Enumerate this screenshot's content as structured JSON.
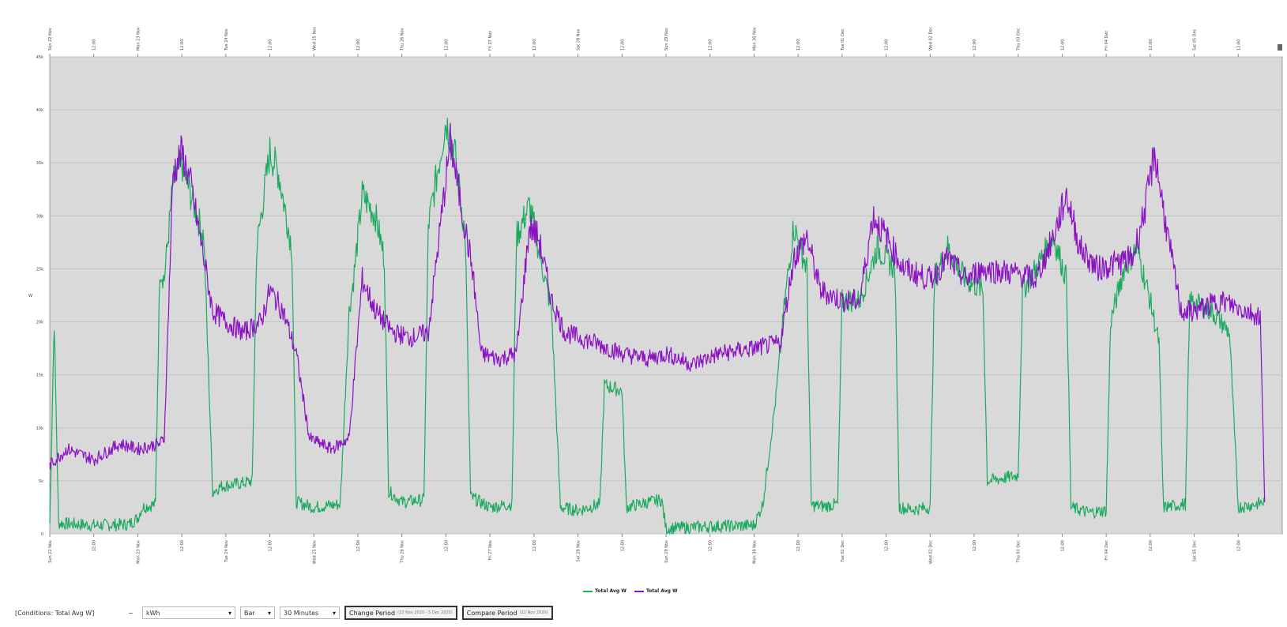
{
  "chart_data": {
    "type": "line",
    "title": "",
    "xlabel": "",
    "ylabel": "W",
    "ylim": [
      0,
      45000
    ],
    "y_ticks": [
      "0",
      "5k",
      "10k",
      "15k",
      "20k",
      "25k",
      "30k",
      "35k",
      "40k",
      "45k"
    ],
    "grid": true,
    "legend_placement": "bottom-center",
    "x_ticks_bottom": [
      "Sun 22 Nov",
      "12:00",
      "Mon 23 Nov",
      "12:00",
      "Tue 24 Nov",
      "12:00",
      "Wed 25 Nov",
      "12:00",
      "Thu 26 Nov",
      "12:00",
      "Fri 27 Nov",
      "12:00",
      "Sat 28 Nov",
      "12:00",
      "Sun 29 Nov",
      "12:00",
      "Mon 30 Nov",
      "12:00",
      "Tue 01 Dec",
      "12:00",
      "Wed 02 Dec",
      "12:00",
      "Thu 03 Dec",
      "12:00",
      "Fri 04 Dec",
      "12:00",
      "Sat 05 Dec",
      "12:00"
    ],
    "x_ticks_top": [
      "Sun 22 Nov",
      "12:00",
      "Mon 23 Nov",
      "12:00",
      "Tue 24 Nov",
      "12:00",
      "Wed 25 Nov",
      "12:00",
      "Thu 26 Nov",
      "12:00",
      "Fri 27 Nov",
      "12:00",
      "Sat 28 Nov",
      "12:00",
      "Sun 29 Nov",
      "12:00",
      "Mon 30 Nov",
      "12:00",
      "Tue 01 Dec",
      "12:00",
      "Wed 02 Dec",
      "12:00",
      "Thu 03 Dec",
      "12:00",
      "Fri 04 Dec",
      "12:00",
      "Sat 05 Dec",
      "12:00"
    ],
    "x_range_days": [
      0,
      14
    ],
    "series": [
      {
        "name": "Total Avg W",
        "color": "#1aaa5e",
        "points": [
          [
            0.0,
            1000
          ],
          [
            0.05,
            20000
          ],
          [
            0.1,
            1000
          ],
          [
            0.5,
            800
          ],
          [
            0.9,
            900
          ],
          [
            1.0,
            1500
          ],
          [
            1.05,
            2500
          ],
          [
            1.2,
            2800
          ],
          [
            1.25,
            25000
          ],
          [
            1.3,
            24000
          ],
          [
            1.4,
            33000
          ],
          [
            1.5,
            35000
          ],
          [
            1.6,
            32000
          ],
          [
            1.75,
            28000
          ],
          [
            1.85,
            4000
          ],
          [
            1.95,
            4500
          ],
          [
            2.2,
            4800
          ],
          [
            2.3,
            5000
          ],
          [
            2.35,
            27000
          ],
          [
            2.4,
            30000
          ],
          [
            2.5,
            36000
          ],
          [
            2.6,
            34000
          ],
          [
            2.75,
            27000
          ],
          [
            2.8,
            3000
          ],
          [
            3.0,
            2500
          ],
          [
            3.3,
            2800
          ],
          [
            3.4,
            21000
          ],
          [
            3.45,
            24000
          ],
          [
            3.55,
            32000
          ],
          [
            3.7,
            30000
          ],
          [
            3.8,
            26000
          ],
          [
            3.85,
            4000
          ],
          [
            4.0,
            3000
          ],
          [
            4.25,
            3200
          ],
          [
            4.3,
            29000
          ],
          [
            4.4,
            34000
          ],
          [
            4.5,
            39000
          ],
          [
            4.6,
            36000
          ],
          [
            4.72,
            28000
          ],
          [
            4.78,
            3500
          ],
          [
            5.0,
            2500
          ],
          [
            5.25,
            2800
          ],
          [
            5.3,
            28000
          ],
          [
            5.45,
            31000
          ],
          [
            5.55,
            27000
          ],
          [
            5.7,
            21000
          ],
          [
            5.8,
            2500
          ],
          [
            6.0,
            2200
          ],
          [
            6.25,
            2800
          ],
          [
            6.3,
            14000
          ],
          [
            6.5,
            13500
          ],
          [
            6.55,
            2500
          ],
          [
            6.8,
            3000
          ],
          [
            6.95,
            3200
          ],
          [
            7.0,
            500
          ],
          [
            7.5,
            700
          ],
          [
            8.0,
            800
          ],
          [
            8.1,
            2800
          ],
          [
            8.25,
            13000
          ],
          [
            8.35,
            22000
          ],
          [
            8.45,
            29000
          ],
          [
            8.6,
            25000
          ],
          [
            8.65,
            2700
          ],
          [
            8.8,
            2600
          ],
          [
            8.95,
            2800
          ],
          [
            9.0,
            22000
          ],
          [
            9.2,
            22000
          ],
          [
            9.4,
            27000
          ],
          [
            9.6,
            25000
          ],
          [
            9.65,
            2500
          ],
          [
            9.8,
            2300
          ],
          [
            10.0,
            2500
          ],
          [
            10.05,
            24000
          ],
          [
            10.2,
            27000
          ],
          [
            10.4,
            24000
          ],
          [
            10.6,
            23000
          ],
          [
            10.65,
            5000
          ],
          [
            11.0,
            5500
          ],
          [
            11.05,
            23000
          ],
          [
            11.2,
            25000
          ],
          [
            11.4,
            28000
          ],
          [
            11.55,
            24000
          ],
          [
            11.6,
            2500
          ],
          [
            11.8,
            2000
          ],
          [
            12.0,
            2200
          ],
          [
            12.05,
            20000
          ],
          [
            12.2,
            25000
          ],
          [
            12.35,
            27000
          ],
          [
            12.5,
            22000
          ],
          [
            12.6,
            18000
          ],
          [
            12.65,
            2500
          ],
          [
            12.9,
            2800
          ],
          [
            12.95,
            22000
          ],
          [
            13.2,
            21000
          ],
          [
            13.4,
            19000
          ],
          [
            13.5,
            2500
          ],
          [
            13.7,
            2800
          ],
          [
            13.8,
            3000
          ]
        ]
      },
      {
        "name": "Total Avg W",
        "color": "#8a11c4",
        "points": [
          [
            0.0,
            6500
          ],
          [
            0.2,
            8000
          ],
          [
            0.5,
            7000
          ],
          [
            0.8,
            8500
          ],
          [
            1.0,
            8000
          ],
          [
            1.25,
            8500
          ],
          [
            1.3,
            9000
          ],
          [
            1.4,
            34000
          ],
          [
            1.5,
            36000
          ],
          [
            1.6,
            33000
          ],
          [
            1.75,
            26000
          ],
          [
            1.85,
            21000
          ],
          [
            2.0,
            20000
          ],
          [
            2.2,
            19000
          ],
          [
            2.4,
            20000
          ],
          [
            2.5,
            23000
          ],
          [
            2.65,
            21000
          ],
          [
            2.8,
            17000
          ],
          [
            2.95,
            9000
          ],
          [
            3.2,
            8000
          ],
          [
            3.4,
            9000
          ],
          [
            3.55,
            24000
          ],
          [
            3.7,
            21000
          ],
          [
            3.9,
            19000
          ],
          [
            4.1,
            18500
          ],
          [
            4.3,
            19000
          ],
          [
            4.45,
            30000
          ],
          [
            4.55,
            37000
          ],
          [
            4.65,
            32000
          ],
          [
            4.8,
            25000
          ],
          [
            4.9,
            17000
          ],
          [
            5.1,
            16500
          ],
          [
            5.3,
            17000
          ],
          [
            5.45,
            29000
          ],
          [
            5.55,
            28000
          ],
          [
            5.7,
            22000
          ],
          [
            5.85,
            19000
          ],
          [
            6.2,
            18000
          ],
          [
            6.5,
            17000
          ],
          [
            6.8,
            16500
          ],
          [
            7.0,
            17000
          ],
          [
            7.3,
            16000
          ],
          [
            7.6,
            17000
          ],
          [
            8.0,
            17500
          ],
          [
            8.3,
            18000
          ],
          [
            8.45,
            26000
          ],
          [
            8.6,
            28000
          ],
          [
            8.75,
            23000
          ],
          [
            9.0,
            22000
          ],
          [
            9.2,
            22000
          ],
          [
            9.35,
            30000
          ],
          [
            9.5,
            28000
          ],
          [
            9.7,
            25000
          ],
          [
            10.0,
            24000
          ],
          [
            10.2,
            26000
          ],
          [
            10.4,
            24000
          ],
          [
            10.6,
            25000
          ],
          [
            11.0,
            24500
          ],
          [
            11.2,
            24000
          ],
          [
            11.4,
            28000
          ],
          [
            11.55,
            32000
          ],
          [
            11.7,
            27000
          ],
          [
            11.9,
            25000
          ],
          [
            12.1,
            25500
          ],
          [
            12.3,
            26000
          ],
          [
            12.45,
            31000
          ],
          [
            12.55,
            36000
          ],
          [
            12.7,
            28000
          ],
          [
            12.85,
            21000
          ],
          [
            13.0,
            21000
          ],
          [
            13.3,
            22000
          ],
          [
            13.6,
            21000
          ],
          [
            13.75,
            20500
          ],
          [
            13.8,
            3000
          ]
        ]
      }
    ]
  },
  "legend": {
    "items": [
      {
        "label": "Total Avg W",
        "color": "#1aaa5e"
      },
      {
        "label": "Total Avg W",
        "color": "#8a11c4"
      }
    ]
  },
  "controls": {
    "conditions_label": "[Conditions: Total Avg W]",
    "conditions_arrow": "~",
    "select1_value": "kWh",
    "select2_value": "Bar",
    "select3_value": "30 Minutes",
    "change_period_label": "Change Period",
    "change_period_sub": "(22 Nov 2020 - 5 Dec 2020)",
    "compare_period_label": "Compare Period",
    "compare_period_sub": "(22 Nov 2020)"
  }
}
